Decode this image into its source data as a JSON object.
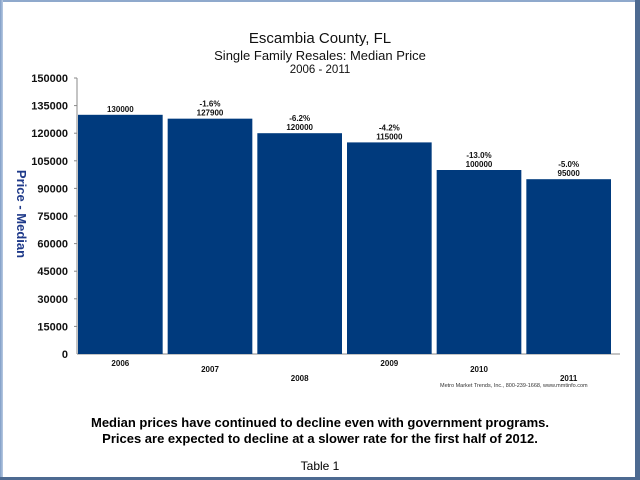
{
  "chart_data": {
    "type": "bar",
    "title": "Escambia County, FL",
    "subtitle": "Single Family Resales: Median Price",
    "period": "2006 - 2011",
    "xlabel": "",
    "ylabel": "Price - Median",
    "ylim": [
      0,
      150000
    ],
    "yticks": [
      0,
      15000,
      30000,
      45000,
      60000,
      75000,
      90000,
      105000,
      120000,
      135000,
      150000
    ],
    "grid": false,
    "legend": null,
    "categories": [
      "2006",
      "2007",
      "2008",
      "2009",
      "2010",
      "2011"
    ],
    "values": [
      130000,
      127900,
      120000,
      115000,
      100000,
      95000
    ],
    "value_labels": [
      "130000",
      "127900",
      "120000",
      "115000",
      "100000",
      "95000"
    ],
    "change_labels": [
      "",
      "-1.6%",
      "-6.2%",
      "-4.2%",
      "-13.0%",
      "-5.0%"
    ],
    "bar_color": "#003a7d"
  },
  "credit": "Metro Market Trends, Inc., 800-239-1668, www.mmtinfo.com",
  "caption": {
    "line1": "Median prices have continued to decline even with government programs.",
    "line2": "Prices are expected to decline at a slower rate for the first half of 2012."
  },
  "table_label": "Table 1"
}
